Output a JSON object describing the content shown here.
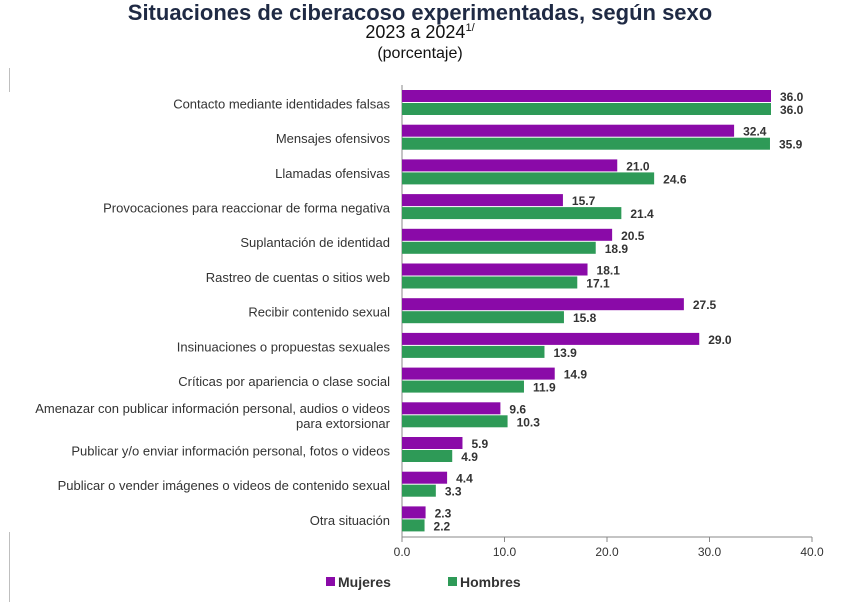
{
  "header": {
    "title": "Situaciones de ciberacoso experimentadas, según sexo",
    "subtitle": "2023 a 2024",
    "footnote_mark": "1/",
    "units": "(porcentaje)"
  },
  "chart_data": {
    "type": "bar",
    "orientation": "horizontal",
    "title": "Situaciones de ciberacoso experimentadas, según sexo",
    "xlim": [
      0,
      40
    ],
    "xticks": [
      0,
      10,
      20,
      30,
      40
    ],
    "xtick_labels": [
      "0.0",
      "10.0",
      "20.0",
      "30.0",
      "40.0"
    ],
    "grid": false,
    "legend_position": "bottom",
    "categories": [
      [
        "Contacto mediante identidades falsas"
      ],
      [
        "Mensajes ofensivos"
      ],
      [
        "Llamadas ofensivas"
      ],
      [
        "Provocaciones para reaccionar de forma negativa"
      ],
      [
        "Suplantación de identidad"
      ],
      [
        "Rastreo de cuentas o sitios web"
      ],
      [
        "Recibir contenido sexual"
      ],
      [
        "Insinuaciones o propuestas sexuales"
      ],
      [
        "Críticas por apariencia o clase social"
      ],
      [
        "Amenazar con publicar información personal, audios o videos",
        "para extorsionar"
      ],
      [
        "Publicar y/o enviar información personal, fotos o videos"
      ],
      [
        "Publicar o vender imágenes o videos de contenido sexual"
      ],
      [
        "Otra situación"
      ]
    ],
    "series": [
      {
        "name": "Mujeres",
        "color": "#8a0aa8",
        "values": [
          36.0,
          32.4,
          21.0,
          15.7,
          20.5,
          18.1,
          27.5,
          29.0,
          14.9,
          9.6,
          5.9,
          4.4,
          2.3
        ],
        "labels": [
          "36.0",
          "32.4",
          "21.0",
          "15.7",
          "20.5",
          "18.1",
          "27.5",
          "29.0",
          "14.9",
          "9.6",
          "5.9",
          "4.4",
          "2.3"
        ]
      },
      {
        "name": "Hombres",
        "color": "#2e9a57",
        "values": [
          36.0,
          35.9,
          24.6,
          21.4,
          18.9,
          17.1,
          15.8,
          13.9,
          11.9,
          10.3,
          4.9,
          3.3,
          2.2
        ],
        "labels": [
          "36.0",
          "35.9",
          "24.6",
          "21.4",
          "18.9",
          "17.1",
          "15.8",
          "13.9",
          "11.9",
          "10.3",
          "4.9",
          "3.3",
          "2.2"
        ]
      }
    ]
  }
}
